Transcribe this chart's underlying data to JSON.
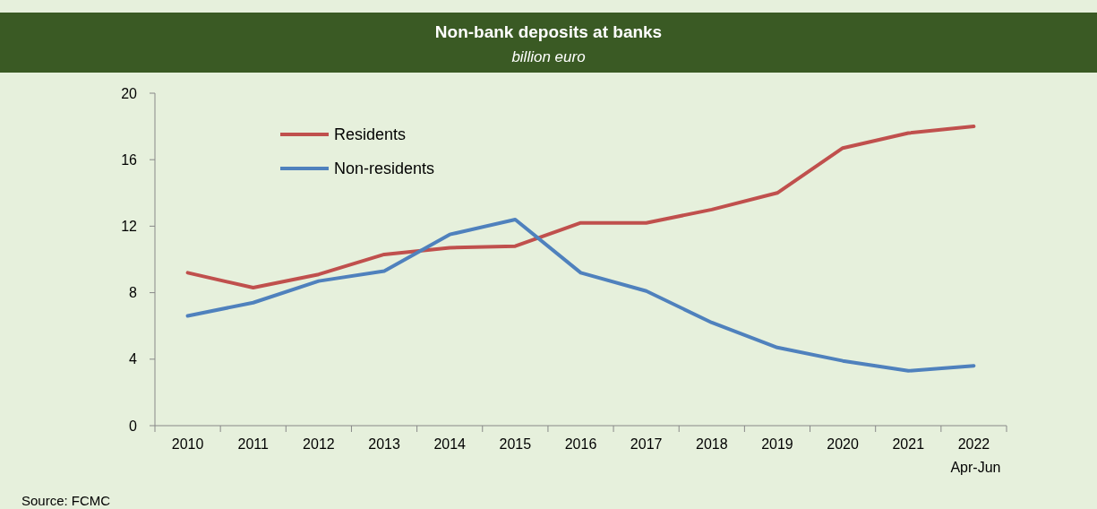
{
  "chart_data": {
    "type": "line",
    "title": "Non-bank deposits at banks",
    "subtitle": "billion euro",
    "categories": [
      "2010",
      "2011",
      "2012",
      "2013",
      "2014",
      "2015",
      "2016",
      "2017",
      "2018",
      "2019",
      "2020",
      "2021",
      "2022\nApr-Jun"
    ],
    "series": [
      {
        "name": "Residents",
        "color": "#c0504d",
        "values": [
          9.2,
          8.3,
          9.1,
          10.3,
          10.7,
          10.8,
          12.2,
          12.2,
          13.0,
          14.0,
          16.7,
          17.6,
          18.0
        ]
      },
      {
        "name": "Non-residents",
        "color": "#4f81bd",
        "values": [
          6.6,
          7.4,
          8.7,
          9.3,
          11.5,
          12.4,
          9.2,
          8.1,
          6.2,
          4.7,
          3.9,
          3.3,
          3.6
        ]
      }
    ],
    "ylim": [
      0,
      20
    ],
    "yticks": [
      0,
      4,
      8,
      12,
      16,
      20
    ],
    "grid": false,
    "legend": "top left",
    "marker": "none",
    "line_style": "solid",
    "annotations": [
      "Source: FCMC"
    ]
  }
}
